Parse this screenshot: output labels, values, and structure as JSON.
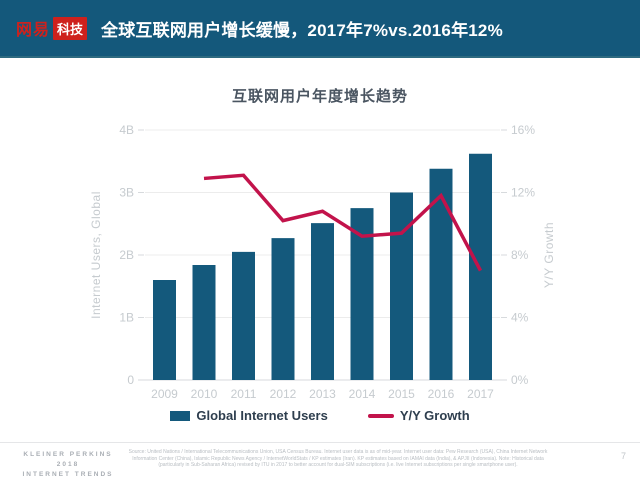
{
  "header": {
    "logo_brand": "网易",
    "logo_sub": "科技",
    "title": "全球互联网用户增长缓慢，2017年7%vs.2016年12%"
  },
  "chart_data": {
    "type": "bar",
    "title": "互联网用户年度增长趋势",
    "categories": [
      "2009",
      "2010",
      "2011",
      "2012",
      "2013",
      "2014",
      "2015",
      "2016",
      "2017"
    ],
    "series": [
      {
        "name": "Global Internet Users",
        "type": "bar",
        "axis": "left",
        "unit": "B",
        "values": [
          1.6,
          1.84,
          2.05,
          2.27,
          2.51,
          2.75,
          3.0,
          3.38,
          3.62
        ]
      },
      {
        "name": "Y/Y Growth",
        "type": "line",
        "axis": "right",
        "unit": "%",
        "values": [
          null,
          12.9,
          13.1,
          10.2,
          10.8,
          9.2,
          9.4,
          11.8,
          7.0
        ]
      }
    ],
    "left_axis": {
      "label": "Internet Users, Global",
      "min": 0,
      "max": 4,
      "ticks": [
        "0",
        "1B",
        "2B",
        "3B",
        "4B"
      ]
    },
    "right_axis": {
      "label": "Y/Y Growth",
      "min": 0,
      "max": 16,
      "ticks": [
        "0%",
        "4%",
        "8%",
        "12%",
        "16%"
      ]
    },
    "grid": true,
    "legend_position": "bottom"
  },
  "legend": {
    "items": [
      {
        "label": "Global Internet Users",
        "swatch": "bar"
      },
      {
        "label": "Y/Y Growth",
        "swatch": "line"
      }
    ]
  },
  "footer": {
    "brand_lines": [
      "KLEINER PERKINS",
      "2018",
      "INTERNET TRENDS"
    ],
    "source": "Source: United Nations / International Telecommunications Union, USA Census Bureau. Internet user data is as of mid-year. Internet user data: Pew Research (USA), China Internet Network Information Center (China), Islamic Republic News Agency / InternetWorldStats / KP estimates (Iran). KP estimates based on IAMAI data (India), & APJII (Indonesia). Note: Historical data (particularly in Sub-Saharan Africa) revised by ITU in 2017 to better account for dual-SIM subscriptions (i.e. live Internet subscriptions per single smartphone user).",
    "page_number": "7"
  },
  "colors": {
    "header_bg": "#14587B",
    "header_border": "#2E6A80",
    "bar": "#14597C",
    "line": "#C2134B",
    "logo_red": "#CE211D",
    "chart_title_text": "#4A5561",
    "legend_text": "#2E3E4E",
    "axis_text": "#C6CBCF",
    "grid": "#ECECEC",
    "baseline": "#D7DADD",
    "footer_text": "#A9AEB4",
    "source_text": "#B8BDC2",
    "page_text": "#C2C6CA"
  }
}
